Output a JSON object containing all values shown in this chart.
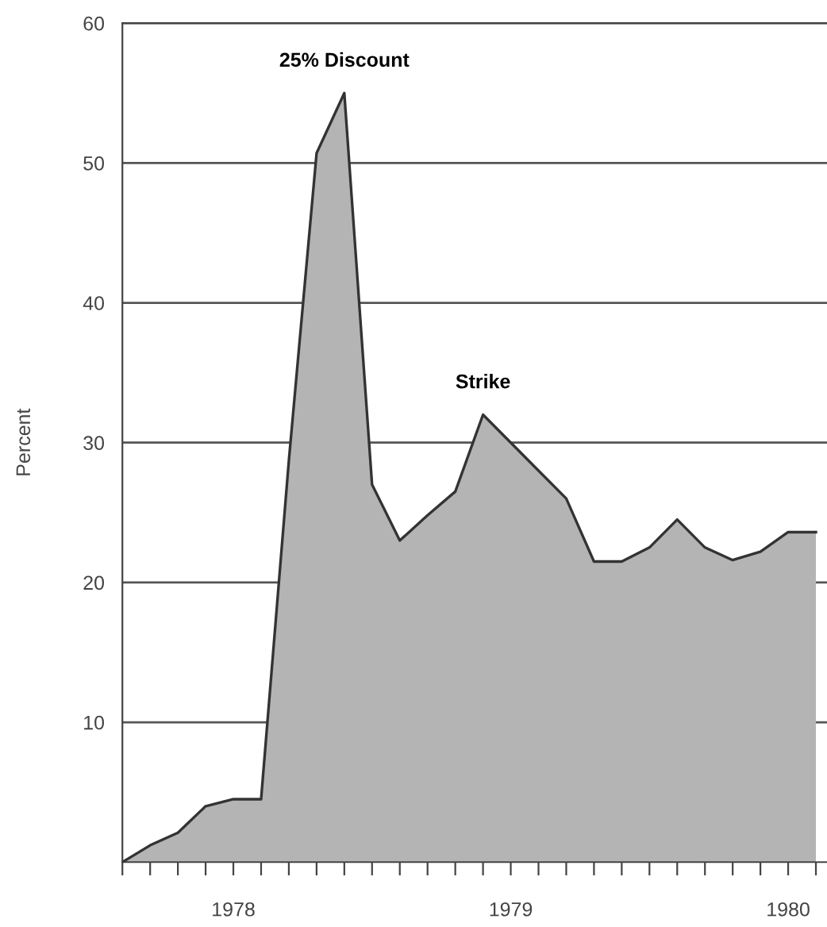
{
  "chart_data": {
    "type": "area",
    "ylabel": "Percent",
    "categories": [
      null,
      null,
      null,
      null,
      "1978",
      null,
      null,
      null,
      null,
      null,
      null,
      null,
      null,
      null,
      "1979",
      null,
      null,
      null,
      null,
      null,
      null,
      null,
      null,
      null,
      "1980",
      null
    ],
    "series": [
      {
        "color": "#b4b4b4",
        "values": [
          0,
          1.2,
          2.1,
          4,
          4.5,
          4.5,
          28.7,
          50.7,
          55,
          27,
          23,
          24.8,
          26.5,
          32,
          30,
          28,
          26,
          21.5,
          21.5,
          22.5,
          24.5,
          22.5,
          21.6,
          22.2,
          23.6,
          23.6
        ]
      }
    ],
    "ylim": [
      0,
      60
    ],
    "yticks": [
      10,
      20,
      30,
      40,
      50,
      60
    ],
    "grid": "y",
    "annotations": [
      {
        "text": "25% Discount",
        "y": 55
      },
      {
        "text": "Strike",
        "y": 32
      }
    ]
  }
}
